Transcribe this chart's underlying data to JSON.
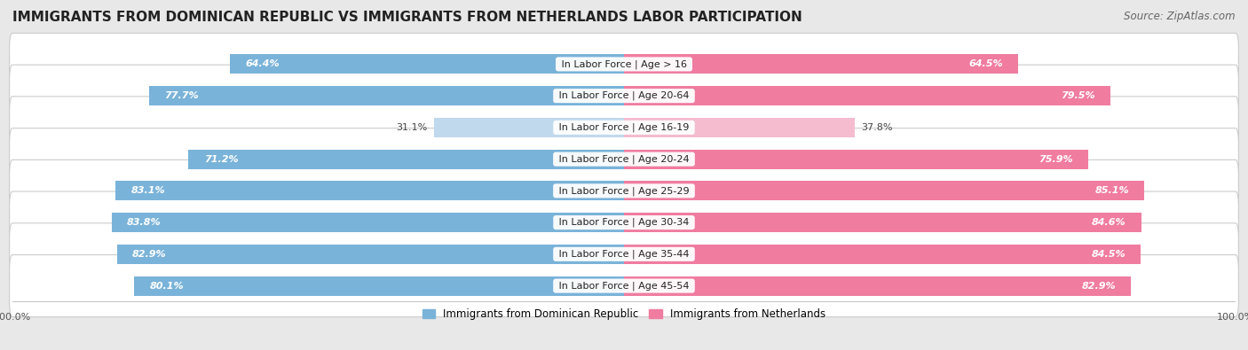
{
  "title": "IMMIGRANTS FROM DOMINICAN REPUBLIC VS IMMIGRANTS FROM NETHERLANDS LABOR PARTICIPATION",
  "source": "Source: ZipAtlas.com",
  "categories": [
    "In Labor Force | Age > 16",
    "In Labor Force | Age 20-64",
    "In Labor Force | Age 16-19",
    "In Labor Force | Age 20-24",
    "In Labor Force | Age 25-29",
    "In Labor Force | Age 30-34",
    "In Labor Force | Age 35-44",
    "In Labor Force | Age 45-54"
  ],
  "dominican_values": [
    64.4,
    77.7,
    31.1,
    71.2,
    83.1,
    83.8,
    82.9,
    80.1
  ],
  "netherlands_values": [
    64.5,
    79.5,
    37.8,
    75.9,
    85.1,
    84.6,
    84.5,
    82.9
  ],
  "dominican_color": "#7ab3d9",
  "netherlands_color": "#f07ca0",
  "dominican_color_light": "#c0d9ec",
  "netherlands_color_light": "#f5bcd0",
  "bg_color": "#e8e8e8",
  "row_bg_odd": "#f5f5f5",
  "row_bg_even": "#ebebeb",
  "bar_height": 0.62,
  "max_value": 100.0,
  "legend_dominican": "Immigrants from Dominican Republic",
  "legend_netherlands": "Immigrants from Netherlands",
  "title_fontsize": 11,
  "source_fontsize": 8.5,
  "label_fontsize": 8,
  "value_fontsize": 8
}
